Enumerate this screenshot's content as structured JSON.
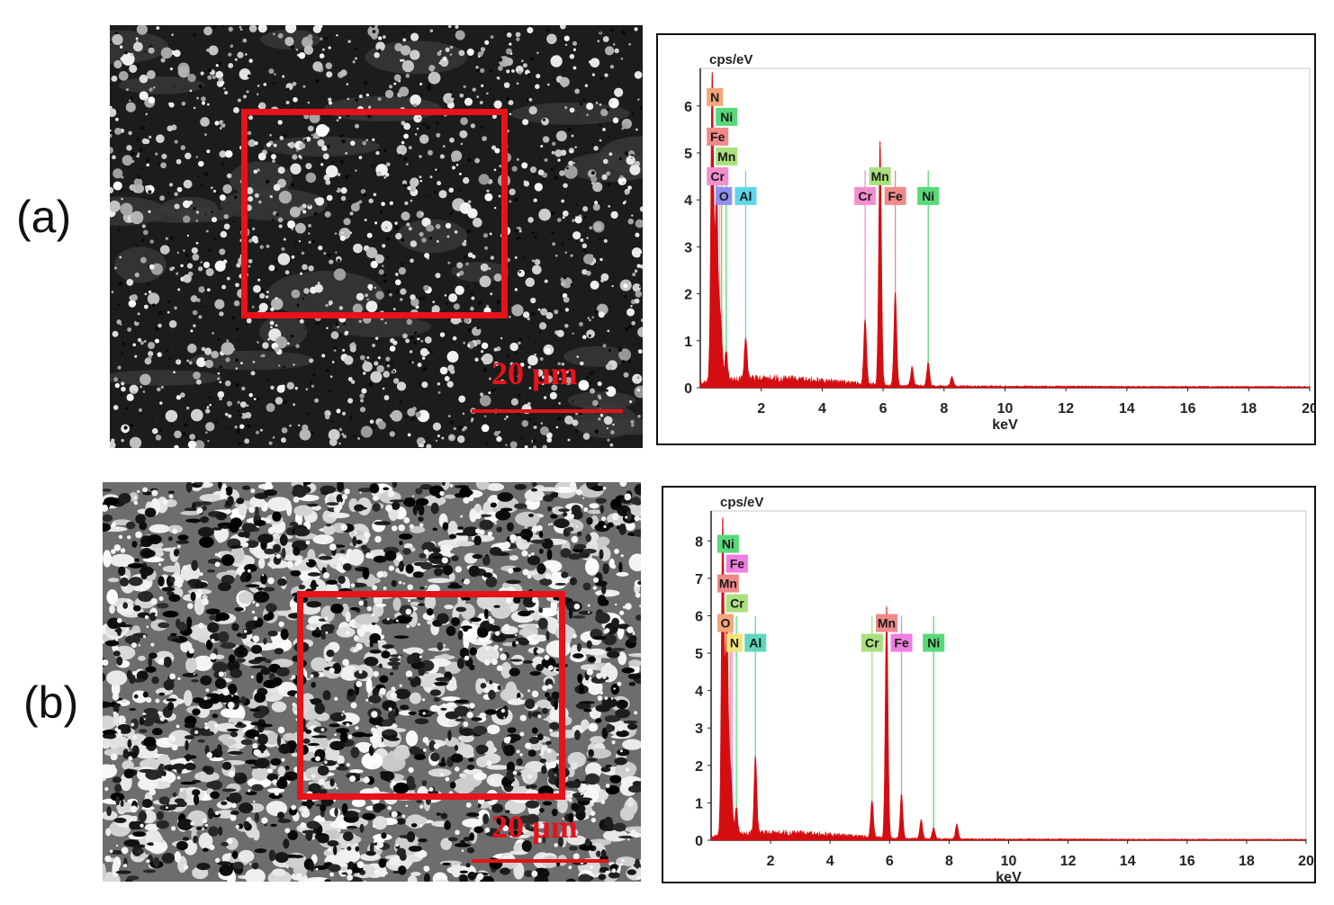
{
  "figure": {
    "panels": [
      {
        "id": "a",
        "label": "(a)",
        "sem": {
          "scale_bar_text": "20 µm",
          "texture": "granular"
        },
        "eds": {
          "chart_data": {
            "type": "line",
            "title": "",
            "ylabel": "cps/eV",
            "xlabel": "keV",
            "xlim": [
              0,
              20
            ],
            "ylim": [
              0,
              6.8
            ],
            "xticks": [
              2,
              4,
              6,
              8,
              10,
              12,
              14,
              16,
              18,
              20
            ],
            "yticks": [
              0,
              1,
              2,
              3,
              4,
              5,
              6
            ],
            "peaks": [
              {
                "x": 0.39,
                "y": 6.6
              },
              {
                "x": 0.52,
                "y": 3.3
              },
              {
                "x": 0.57,
                "y": 0.9
              },
              {
                "x": 0.64,
                "y": 1.0
              },
              {
                "x": 0.7,
                "y": 0.6
              },
              {
                "x": 0.85,
                "y": 0.6
              },
              {
                "x": 1.49,
                "y": 0.9
              },
              {
                "x": 5.41,
                "y": 1.4
              },
              {
                "x": 5.9,
                "y": 5.2
              },
              {
                "x": 6.4,
                "y": 2.0
              },
              {
                "x": 6.95,
                "y": 0.4
              },
              {
                "x": 7.48,
                "y": 0.5
              },
              {
                "x": 8.26,
                "y": 0.2
              }
            ],
            "element_lines": [
              {
                "element": "N",
                "x": 0.39,
                "color": "#f2a77a"
              },
              {
                "element": "Ni",
                "x": 0.85,
                "color": "#58d97a"
              },
              {
                "element": "Fe",
                "x": 0.7,
                "color": "#f08a8a"
              },
              {
                "element": "Mn",
                "x": 0.64,
                "color": "#a9e07d"
              },
              {
                "element": "Cr",
                "x": 0.57,
                "color": "#f28fcf"
              },
              {
                "element": "O",
                "x": 0.52,
                "color": "#8f8ff0"
              },
              {
                "element": "Al",
                "x": 1.49,
                "color": "#5fd6e8"
              },
              {
                "element": "Mn",
                "x": 5.9,
                "color": "#a9e07d"
              },
              {
                "element": "Cr",
                "x": 5.41,
                "color": "#f28fcf"
              },
              {
                "element": "Fe",
                "x": 6.4,
                "color": "#f08a8a"
              },
              {
                "element": "Ni",
                "x": 7.48,
                "color": "#58d97a"
              }
            ],
            "labels_left": [
              {
                "text": "N",
                "color": "#f2a77a"
              },
              {
                "text": "Ni",
                "color": "#58d97a"
              },
              {
                "text": "Fe",
                "color": "#f08a8a"
              },
              {
                "text": "Mn",
                "color": "#a9e07d"
              },
              {
                "text": "Cr",
                "color": "#f28fcf"
              },
              {
                "text": "O",
                "color": "#8f8ff0"
              }
            ],
            "labels_mid": [
              {
                "text": "Al",
                "x": 1.49,
                "color": "#5fd6e8"
              },
              {
                "text": "Mn",
                "x": 5.9,
                "color": "#a9e07d"
              },
              {
                "text": "Cr",
                "x": 5.41,
                "color": "#f28fcf"
              },
              {
                "text": "Fe",
                "x": 6.4,
                "color": "#f08a8a"
              },
              {
                "text": "Ni",
                "x": 7.48,
                "color": "#58d97a"
              }
            ]
          }
        }
      },
      {
        "id": "b",
        "label": "(b)",
        "sem": {
          "scale_bar_text": "20 µm",
          "texture": "contrast"
        },
        "eds": {
          "chart_data": {
            "type": "line",
            "title": "",
            "ylabel": "cps/eV",
            "xlabel": "keV",
            "xlim": [
              0,
              20
            ],
            "ylim": [
              0,
              8.8
            ],
            "xticks": [
              2,
              4,
              6,
              8,
              10,
              12,
              14,
              16,
              18,
              20
            ],
            "yticks": [
              0,
              1,
              2,
              3,
              4,
              5,
              6,
              7,
              8
            ],
            "peaks": [
              {
                "x": 0.39,
                "y": 8.5
              },
              {
                "x": 0.52,
                "y": 5.1
              },
              {
                "x": 0.57,
                "y": 1.0
              },
              {
                "x": 0.64,
                "y": 1.3
              },
              {
                "x": 0.7,
                "y": 0.6
              },
              {
                "x": 0.85,
                "y": 0.7
              },
              {
                "x": 1.49,
                "y": 2.1
              },
              {
                "x": 5.41,
                "y": 1.0
              },
              {
                "x": 5.9,
                "y": 6.2
              },
              {
                "x": 6.4,
                "y": 1.2
              },
              {
                "x": 7.06,
                "y": 0.5
              },
              {
                "x": 7.48,
                "y": 0.3
              },
              {
                "x": 8.26,
                "y": 0.4
              }
            ],
            "element_lines": [
              {
                "element": "Ni",
                "x": 0.85,
                "color": "#58d97a"
              },
              {
                "element": "Fe",
                "x": 0.7,
                "color": "#f07de0"
              },
              {
                "element": "Mn",
                "x": 0.64,
                "color": "#f08a8a"
              },
              {
                "element": "Cr",
                "x": 0.57,
                "color": "#a9e07d"
              },
              {
                "element": "O",
                "x": 0.52,
                "color": "#f2a77a"
              },
              {
                "element": "N",
                "x": 0.39,
                "color": "#f2e27a"
              },
              {
                "element": "Al",
                "x": 1.49,
                "color": "#5fd6bd"
              },
              {
                "element": "Mn",
                "x": 5.9,
                "color": "#f08a8a"
              },
              {
                "element": "Cr",
                "x": 5.41,
                "color": "#a9e07d"
              },
              {
                "element": "Fe",
                "x": 6.4,
                "color": "#f07de0"
              },
              {
                "element": "Ni",
                "x": 7.48,
                "color": "#58d97a"
              }
            ],
            "labels_left": [
              {
                "text": "Ni",
                "color": "#58d97a"
              },
              {
                "text": "Fe",
                "color": "#f07de0"
              },
              {
                "text": "Mn",
                "color": "#f08a8a"
              },
              {
                "text": "Cr",
                "color": "#a9e07d"
              },
              {
                "text": "O",
                "color": "#f2a77a"
              },
              {
                "text": "N",
                "color": "#f2e27a"
              }
            ],
            "labels_mid": [
              {
                "text": "Al",
                "x": 1.49,
                "color": "#5fd6bd"
              },
              {
                "text": "Mn",
                "x": 5.9,
                "color": "#f08a8a"
              },
              {
                "text": "Cr",
                "x": 5.41,
                "color": "#a9e07d"
              },
              {
                "text": "Fe",
                "x": 6.4,
                "color": "#f07de0"
              },
              {
                "text": "Ni",
                "x": 7.48,
                "color": "#58d97a"
              }
            ]
          }
        }
      }
    ],
    "colors": {
      "roi": "#e8121a",
      "spectrum": "#d40d10"
    }
  }
}
